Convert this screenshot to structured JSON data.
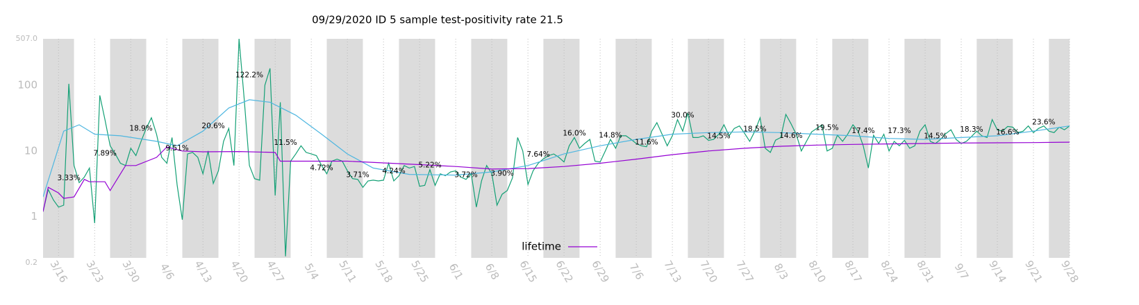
{
  "chart_data": {
    "type": "line",
    "title": "09/29/2020 ID 5 sample test-positivity rate 21.5",
    "log_scale": true,
    "grid": "x",
    "legend_position": "lower center",
    "ylim": [
      0.2,
      507
    ],
    "yticks": [
      0.2,
      1,
      10,
      100,
      {
        "value": 507,
        "label": "507.0"
      }
    ],
    "xlim": [
      "3/13",
      "9/28"
    ],
    "xticks": [
      "3/16",
      "3/23",
      "3/30",
      "4/6",
      "4/13",
      "4/20",
      "4/27",
      "5/4",
      "5/11",
      "5/18",
      "5/25",
      "6/1",
      "6/8",
      "6/15",
      "6/22",
      "6/29",
      "7/6",
      "7/13",
      "7/20",
      "7/27",
      "8/3",
      "8/10",
      "8/17",
      "8/24",
      "8/31",
      "9/7",
      "9/14",
      "9/21",
      "9/28"
    ],
    "series": [
      {
        "color": "#13a075",
        "x": [
          "3/13",
          "3/14",
          "3/15",
          "3/16",
          "3/17",
          "3/18",
          "3/19",
          "3/20",
          "3/21",
          "3/22",
          "3/23",
          "3/24",
          "3/25",
          "3/26",
          "3/27",
          "3/28",
          "3/29",
          "3/30",
          "3/31",
          "4/1",
          "4/2",
          "4/3",
          "4/4",
          "4/5",
          "4/6",
          "4/7",
          "4/8",
          "4/9",
          "4/10",
          "4/11",
          "4/12",
          "4/13",
          "4/14",
          "4/15",
          "4/16",
          "4/17",
          "4/18",
          "4/19",
          "4/20",
          "4/21",
          "4/22",
          "4/23",
          "4/24",
          "4/25",
          "4/26",
          "4/27",
          "4/28",
          "4/29",
          "4/30",
          "5/1",
          "5/2",
          "5/3",
          "5/4",
          "5/5",
          "5/6",
          "5/7",
          "5/8",
          "5/9",
          "5/10",
          "5/11",
          "5/12",
          "5/13",
          "5/14",
          "5/15",
          "5/16",
          "5/17",
          "5/18",
          "5/19",
          "5/20",
          "5/21",
          "5/22",
          "5/23",
          "5/24",
          "5/25",
          "5/26",
          "5/27",
          "5/28",
          "5/29",
          "5/30",
          "5/31",
          "6/1",
          "6/2",
          "6/3",
          "6/4",
          "6/5",
          "6/6",
          "6/7",
          "6/8",
          "6/9",
          "6/10",
          "6/11",
          "6/12",
          "6/13",
          "6/14",
          "6/15",
          "6/16",
          "6/17",
          "6/18",
          "6/19",
          "6/20",
          "6/21",
          "6/22",
          "6/23",
          "6/24",
          "6/25",
          "6/26",
          "6/27",
          "6/28",
          "6/29",
          "6/30",
          "7/1",
          "7/2",
          "7/3",
          "7/4",
          "7/5",
          "7/6",
          "7/7",
          "7/8",
          "7/9",
          "7/10",
          "7/11",
          "7/12",
          "7/13",
          "7/14",
          "7/15",
          "7/16",
          "7/17",
          "7/18",
          "7/19",
          "7/20",
          "7/21",
          "7/22",
          "7/23",
          "7/24",
          "7/25",
          "7/26",
          "7/27",
          "7/28",
          "7/29",
          "7/30",
          "7/31",
          "8/1",
          "8/2",
          "8/3",
          "8/4",
          "8/5",
          "8/6",
          "8/7",
          "8/8",
          "8/9",
          "8/10",
          "8/11",
          "8/12",
          "8/13",
          "8/14",
          "8/15",
          "8/16",
          "8/17",
          "8/18",
          "8/19",
          "8/20",
          "8/21",
          "8/22",
          "8/23",
          "8/24",
          "8/25",
          "8/26",
          "8/27",
          "8/28",
          "8/29",
          "8/30",
          "8/31",
          "9/1",
          "9/2",
          "9/3",
          "9/4",
          "9/5",
          "9/6",
          "9/7",
          "9/8",
          "9/9",
          "9/10",
          "9/11",
          "9/12",
          "9/13",
          "9/14",
          "9/15",
          "9/16",
          "9/17",
          "9/18",
          "9/19",
          "9/20",
          "9/21",
          "9/22",
          "9/23",
          "9/24",
          "9/25",
          "9/26",
          "9/27",
          "9/28"
        ],
        "values": [
          1.2,
          2.6,
          1.8,
          1.4,
          1.5,
          105,
          6,
          3.3,
          4,
          5.5,
          0.8,
          70,
          30,
          12,
          9,
          6.5,
          6,
          11,
          8.5,
          14,
          22,
          32,
          18,
          8,
          6.5,
          16,
          3,
          0.9,
          9,
          9.5,
          8,
          4.5,
          10,
          3.2,
          5,
          14,
          22,
          6,
          507,
          60,
          6,
          3.8,
          3.6,
          100,
          180,
          2.1,
          55,
          0.25,
          7,
          9,
          12,
          9.5,
          9,
          8.5,
          6,
          4.5,
          7,
          7.5,
          7,
          5,
          3.8,
          3.7,
          2.8,
          3.5,
          3.6,
          3.5,
          3.6,
          6.5,
          3.5,
          4.2,
          6,
          5.5,
          5.8,
          2.9,
          3.0,
          5.2,
          3.0,
          4.5,
          4.2,
          4.8,
          5,
          4,
          3.7,
          4.5,
          1.4,
          3.5,
          6,
          4.5,
          1.5,
          2.2,
          2.5,
          3.9,
          16,
          10,
          3.1,
          5,
          6.5,
          7.6,
          8.5,
          9,
          8,
          6.8,
          12,
          16,
          11,
          13,
          15,
          7,
          6.8,
          10,
          15,
          11,
          17,
          17,
          15,
          13,
          12,
          11.6,
          20,
          27,
          18,
          12,
          17,
          30,
          20,
          38,
          16,
          16,
          17,
          14.5,
          15,
          18,
          25,
          17,
          22,
          24,
          18.5,
          14,
          20,
          32,
          11,
          9.5,
          14.6,
          16,
          36,
          26,
          18,
          10,
          14,
          19.5,
          22,
          25,
          10,
          11,
          17.4,
          14,
          18,
          25,
          20,
          12,
          5.5,
          17.3,
          13,
          18,
          10,
          14,
          12,
          14.5,
          11,
          12,
          20,
          25,
          14,
          13,
          15,
          18.3,
          21,
          15,
          13,
          14,
          16.6,
          20,
          17,
          16,
          30,
          21,
          20,
          23.6,
          23,
          19,
          20,
          24,
          19,
          22,
          24,
          20,
          19,
          23,
          21,
          24
        ]
      },
      {
        "color": "#4db6e0",
        "x": [
          "3/13",
          "3/17",
          "3/20",
          "3/23",
          "3/28",
          "4/4",
          "4/8",
          "4/13",
          "4/18",
          "4/22",
          "4/26",
          "5/1",
          "5/6",
          "5/11",
          "5/16",
          "5/23",
          "6/1",
          "6/8",
          "6/15",
          "6/22",
          "6/29",
          "7/6",
          "7/13",
          "7/20",
          "7/27",
          "8/3",
          "8/10",
          "8/17",
          "8/24",
          "8/31",
          "9/7",
          "9/14",
          "9/21",
          "9/28"
        ],
        "values": [
          2,
          20,
          25,
          18,
          17,
          14,
          12,
          20,
          45,
          60,
          55,
          35,
          18,
          9,
          5.5,
          4.4,
          4.3,
          4.8,
          6,
          9,
          12,
          15,
          18,
          19,
          19.5,
          19,
          18,
          17,
          15.5,
          15,
          16,
          17,
          20,
          24
        ]
      },
      {
        "name": "lifetime",
        "color": "#9400d3",
        "x": [
          "3/13",
          "3/14",
          "3/16",
          "3/17",
          "3/19",
          "3/21",
          "3/22",
          "3/25",
          "3/26",
          "3/29",
          "3/31",
          "4/4",
          "4/6",
          "4/9",
          "4/13",
          "4/20",
          "4/27",
          "4/28",
          "5/11",
          "5/25",
          "6/1",
          "6/8",
          "6/15",
          "6/22",
          "6/29",
          "7/6",
          "7/13",
          "7/20",
          "7/27",
          "8/3",
          "8/10",
          "8/17",
          "8/24",
          "8/31",
          "9/7",
          "9/14",
          "9/21",
          "9/28"
        ],
        "values": [
          1.2,
          2.8,
          2.3,
          1.9,
          2.0,
          3.7,
          3.4,
          3.4,
          2.5,
          6,
          6,
          8,
          11.5,
          10,
          9.7,
          9.8,
          9.5,
          7,
          7,
          6.2,
          5.8,
          5.3,
          5.4,
          5.8,
          6.5,
          7.5,
          8.8,
          10,
          11,
          11.8,
          12.3,
          12.6,
          12.8,
          13,
          13.2,
          13.3,
          13.4,
          13.6
        ]
      }
    ],
    "annotations": [
      {
        "x": "3/18",
        "value": 3.33,
        "label": "3.33%"
      },
      {
        "x": "3/25",
        "value": 7.89,
        "label": "7.89%"
      },
      {
        "x": "4/1",
        "value": 18.9,
        "label": "18.9%"
      },
      {
        "x": "4/8",
        "value": 9.51,
        "label": "9.51%"
      },
      {
        "x": "4/15",
        "value": 20.6,
        "label": "20.6%"
      },
      {
        "x": "4/22",
        "value": 122.2,
        "label": "122.2%"
      },
      {
        "x": "4/29",
        "value": 11.5,
        "label": "11.5%"
      },
      {
        "x": "5/6",
        "value": 4.72,
        "label": "4.72%"
      },
      {
        "x": "5/13",
        "value": 3.71,
        "label": "3.71%"
      },
      {
        "x": "5/20",
        "value": 4.24,
        "label": "4.24%"
      },
      {
        "x": "5/27",
        "value": 5.22,
        "label": "5.22%"
      },
      {
        "x": "6/3",
        "value": 3.72,
        "label": "3.72%"
      },
      {
        "x": "6/10",
        "value": 3.9,
        "label": "3.90%"
      },
      {
        "x": "6/17",
        "value": 7.64,
        "label": "7.64%"
      },
      {
        "x": "6/24",
        "value": 16.0,
        "label": "16.0%"
      },
      {
        "x": "7/1",
        "value": 14.8,
        "label": "14.8%"
      },
      {
        "x": "7/8",
        "value": 11.6,
        "label": "11.6%"
      },
      {
        "x": "7/15",
        "value": 30.0,
        "label": "30.0%"
      },
      {
        "x": "7/22",
        "value": 14.5,
        "label": "14.5%"
      },
      {
        "x": "7/29",
        "value": 18.5,
        "label": "18.5%"
      },
      {
        "x": "8/5",
        "value": 14.6,
        "label": "14.6%"
      },
      {
        "x": "8/12",
        "value": 19.5,
        "label": "19.5%"
      },
      {
        "x": "8/19",
        "value": 17.4,
        "label": "17.4%"
      },
      {
        "x": "8/26",
        "value": 17.3,
        "label": "17.3%"
      },
      {
        "x": "9/2",
        "value": 14.5,
        "label": "14.5%"
      },
      {
        "x": "9/9",
        "value": 18.3,
        "label": "18.3%"
      },
      {
        "x": "9/16",
        "value": 16.6,
        "label": "16.6%"
      },
      {
        "x": "9/23",
        "value": 23.6,
        "label": "23.6%"
      }
    ]
  }
}
